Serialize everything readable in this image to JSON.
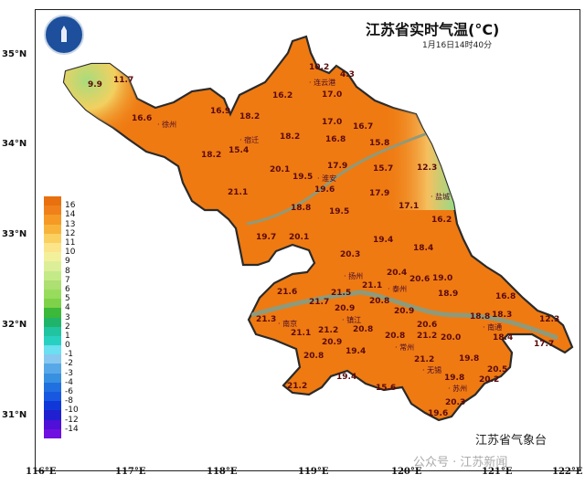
{
  "header": {
    "title": "江苏省实时气温(°C)",
    "timestamp": "1月16日14时40分"
  },
  "axes": {
    "lat_labels": [
      "35°N",
      "34°N",
      "33°N",
      "32°N",
      "31°N"
    ],
    "lon_labels": [
      "116°E",
      "117°E",
      "118°E",
      "119°E",
      "120°E",
      "121°E",
      "122°E"
    ]
  },
  "legend": {
    "labels": [
      "16",
      "14",
      "13",
      "12",
      "11",
      "10",
      "9",
      "8",
      "7",
      "6",
      "5",
      "4",
      "3",
      "2",
      "1",
      "0",
      "-1",
      "-2",
      "-3",
      "-4",
      "-6",
      "-8",
      "-10",
      "-12",
      "-14"
    ],
    "colors": [
      "#e8700f",
      "#f0801a",
      "#f59a24",
      "#f8b43a",
      "#fad060",
      "#fbe48a",
      "#f3f09c",
      "#dcef98",
      "#c4ea88",
      "#addf72",
      "#98dc5c",
      "#7ed24a",
      "#3cb83a",
      "#20b46a",
      "#20c4a0",
      "#28d0c0",
      "#6ae0f0",
      "#88c8f0",
      "#58a8e8",
      "#3890e0",
      "#2070e0",
      "#1858e0",
      "#1038d8",
      "#2020d0",
      "#5010d8",
      "#7010e0"
    ]
  },
  "cities": [
    "徐州",
    "宿迁",
    "连云港",
    "淮安",
    "盐城",
    "扬州",
    "泰州",
    "南京",
    "镇江",
    "南通",
    "常州",
    "无锡",
    "苏州"
  ],
  "stations": [
    "9.9",
    "11.7",
    "16.6",
    "16.9",
    "18.2",
    "16.2",
    "10.2",
    "4.3",
    "17.0",
    "17.0",
    "16.7",
    "15.8",
    "16.8",
    "18.2",
    "15.4",
    "18.2",
    "20.1",
    "17.9",
    "19.5",
    "15.7",
    "12.3",
    "21.1",
    "19.6",
    "17.9",
    "17.1",
    "16.2",
    "18.8",
    "19.5",
    "19.7",
    "20.1",
    "19.4",
    "18.4",
    "20.3",
    "20.4",
    "20.6",
    "19.0",
    "21.1",
    "21.5",
    "21.6",
    "21.7",
    "18.9",
    "16.8",
    "20.8",
    "20.9",
    "20.9",
    "18.8",
    "18.3",
    "12.3",
    "21.3",
    "20.8",
    "21.1",
    "21.2",
    "20.6",
    "21.2",
    "20.0",
    "18.4",
    "17.7",
    "20.8",
    "20.9",
    "19.4",
    "20.8",
    "21.2",
    "19.8",
    "20.5",
    "20.2",
    "19.4",
    "15.6",
    "19.8",
    "21.2",
    "20.3",
    "19.6"
  ],
  "source": "江苏省气象台",
  "watermark": "公众号 · 江苏新闻",
  "colors": {
    "land_warm": "#ef7a12",
    "land_cool": "#9fdc7a",
    "boundary": "#2a2a2a",
    "river": "#8f9a7a"
  }
}
